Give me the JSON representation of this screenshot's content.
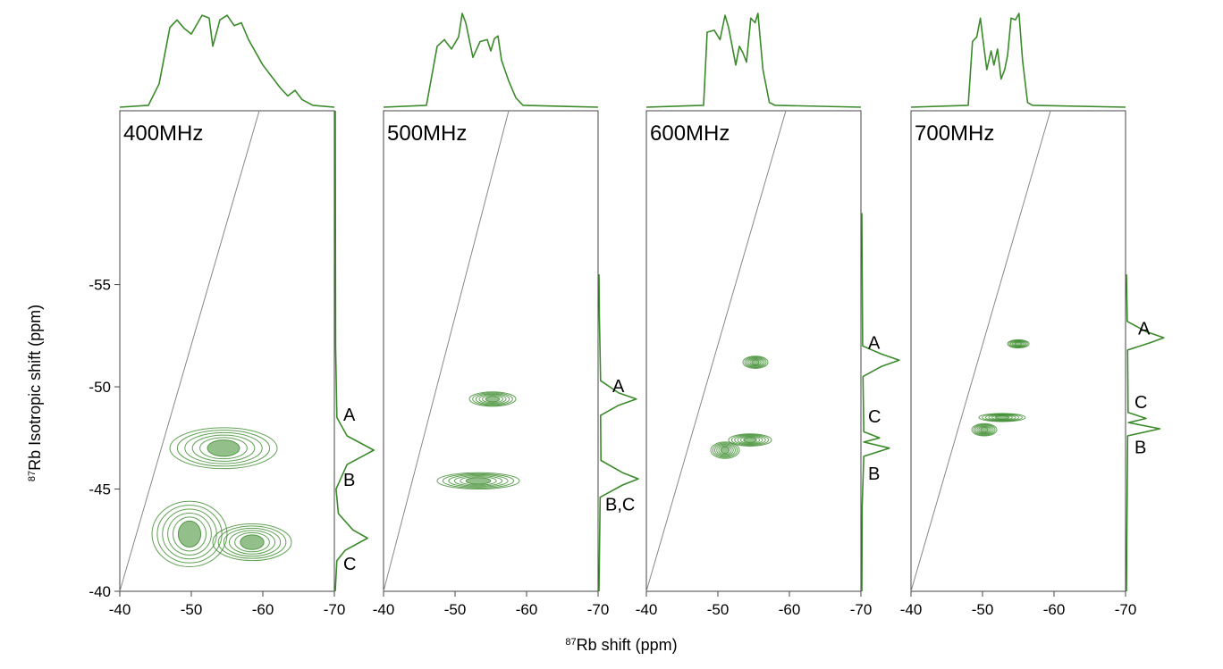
{
  "figure": {
    "xlabel_sup": "87",
    "xlabel_rest": "Rb shift (ppm)",
    "ylabel_sup": "87",
    "ylabel_rest": "Rb Isotropic shift (ppm)",
    "contour_color": "#3a8a2a",
    "diagonal_color": "#888888"
  },
  "chart_data": [
    {
      "type": "contour",
      "title": "400MHz",
      "xlim": [
        -40,
        -70
      ],
      "ylim": [
        -40,
        -63.5
      ],
      "xticks": [
        -40,
        -50,
        -60,
        -70
      ],
      "yticks": [
        -55,
        -50,
        -45,
        -40
      ],
      "diagonal": [
        [
          -40,
          -40
        ],
        [
          -59.5,
          -63.5
        ]
      ],
      "peaks": [
        {
          "x": [
            -47,
            -62
          ],
          "y": -47.0,
          "h": 1.0
        },
        {
          "x": [
            -44.5,
            -55
          ],
          "y": -42.8,
          "h": 1.6
        },
        {
          "x": [
            -53,
            -64
          ],
          "y": -42.4,
          "h": 0.9
        }
      ],
      "spectrum": [
        [
          -40,
          0.0
        ],
        [
          -44,
          0.02
        ],
        [
          -45.5,
          0.25
        ],
        [
          -47,
          0.85
        ],
        [
          -48,
          0.93
        ],
        [
          -49,
          0.84
        ],
        [
          -50,
          0.78
        ],
        [
          -51.5,
          0.98
        ],
        [
          -52.5,
          0.95
        ],
        [
          -53,
          0.65
        ],
        [
          -54,
          0.93
        ],
        [
          -55,
          0.98
        ],
        [
          -56,
          0.87
        ],
        [
          -57,
          0.9
        ],
        [
          -58,
          0.72
        ],
        [
          -60,
          0.45
        ],
        [
          -61.5,
          0.3
        ],
        [
          -62.5,
          0.2
        ],
        [
          -63.5,
          0.12
        ],
        [
          -64.5,
          0.18
        ],
        [
          -65.5,
          0.08
        ],
        [
          -67,
          0.02
        ],
        [
          -70,
          0.0
        ]
      ],
      "projection": [
        [
          -40,
          0.0
        ],
        [
          -41.5,
          0.04
        ],
        [
          -42.0,
          0.25
        ],
        [
          -42.6,
          0.82
        ],
        [
          -43.0,
          0.45
        ],
        [
          -43.8,
          0.08
        ],
        [
          -45.0,
          0.02
        ],
        [
          -46.2,
          0.3
        ],
        [
          -46.9,
          0.98
        ],
        [
          -47.6,
          0.3
        ],
        [
          -48.5,
          0.04
        ],
        [
          -52,
          0.01
        ],
        [
          -63.5,
          0.0
        ]
      ],
      "labels": [
        {
          "text": "A",
          "y": -48.7,
          "dx": 10
        },
        {
          "text": "B",
          "y": -45.5,
          "dx": 10
        },
        {
          "text": "C",
          "y": -41.4,
          "dx": 10
        }
      ]
    },
    {
      "type": "contour",
      "title": "500MHz",
      "xlim": [
        -40,
        -70
      ],
      "ylim": [
        -40,
        -63.5
      ],
      "xticks": [
        -40,
        -50,
        -60,
        -70
      ],
      "yticks": [],
      "diagonal": [
        [
          -40,
          -40
        ],
        [
          -57.5,
          -63.5
        ]
      ],
      "peaks": [
        {
          "x": [
            -52,
            -58.5
          ],
          "y": -49.4,
          "h": 0.35
        },
        {
          "x": [
            -47.5,
            -59
          ],
          "y": -45.4,
          "h": 0.4
        }
      ],
      "spectrum": [
        [
          -40,
          0.0
        ],
        [
          -46,
          0.02
        ],
        [
          -47.5,
          0.65
        ],
        [
          -48.5,
          0.72
        ],
        [
          -49.5,
          0.62
        ],
        [
          -50.5,
          0.75
        ],
        [
          -51,
          1.0
        ],
        [
          -51.5,
          0.9
        ],
        [
          -52.5,
          0.53
        ],
        [
          -53.5,
          0.7
        ],
        [
          -54.5,
          0.72
        ],
        [
          -55,
          0.6
        ],
        [
          -55.5,
          0.73
        ],
        [
          -56,
          0.76
        ],
        [
          -56.5,
          0.5
        ],
        [
          -57.5,
          0.28
        ],
        [
          -58.5,
          0.1
        ],
        [
          -59.5,
          0.02
        ],
        [
          -70,
          0.0
        ]
      ],
      "projection": [
        [
          -40,
          0.0
        ],
        [
          -44.6,
          0.03
        ],
        [
          -45.2,
          0.6
        ],
        [
          -45.5,
          1.0
        ],
        [
          -45.8,
          0.6
        ],
        [
          -46.4,
          0.05
        ],
        [
          -48.6,
          0.04
        ],
        [
          -49.1,
          0.5
        ],
        [
          -49.4,
          0.95
        ],
        [
          -49.7,
          0.5
        ],
        [
          -50.3,
          0.04
        ],
        [
          -53.5,
          0.01
        ],
        [
          -55.5,
          0.0
        ]
      ],
      "labels": [
        {
          "text": "A",
          "y": -50.1,
          "dx": 16
        },
        {
          "text": "B,C",
          "y": -44.3,
          "dx": 8
        }
      ]
    },
    {
      "type": "contour",
      "title": "600MHz",
      "xlim": [
        -40,
        -70
      ],
      "ylim": [
        -40,
        -63.5
      ],
      "xticks": [
        -40,
        -50,
        -60,
        -70
      ],
      "yticks": [],
      "diagonal": [
        [
          -40,
          -40
        ],
        [
          -59.5,
          -63.5
        ]
      ],
      "peaks": [
        {
          "x": [
            -53.5,
            -57.0
          ],
          "y": -51.2,
          "h": 0.3
        },
        {
          "x": [
            -51.5,
            -57.5
          ],
          "y": -47.4,
          "h": 0.3
        },
        {
          "x": [
            -49,
            -53
          ],
          "y": -46.9,
          "h": 0.4
        }
      ],
      "spectrum": [
        [
          -40,
          0.0
        ],
        [
          -48,
          0.02
        ],
        [
          -48.5,
          0.8
        ],
        [
          -49.5,
          0.82
        ],
        [
          -50.3,
          0.72
        ],
        [
          -51,
          0.98
        ],
        [
          -51.5,
          0.85
        ],
        [
          -52.5,
          0.45
        ],
        [
          -53,
          0.65
        ],
        [
          -53.5,
          0.58
        ],
        [
          -54,
          0.48
        ],
        [
          -54.6,
          0.95
        ],
        [
          -55.2,
          0.9
        ],
        [
          -55.6,
          1.0
        ],
        [
          -56.3,
          0.4
        ],
        [
          -57.2,
          0.05
        ],
        [
          -58,
          0.02
        ],
        [
          -70,
          0.0
        ]
      ],
      "projection": [
        [
          -40,
          0.0
        ],
        [
          -44.2,
          0.01
        ],
        [
          -46.6,
          0.05
        ],
        [
          -47.0,
          0.7
        ],
        [
          -47.3,
          0.05
        ],
        [
          -47.5,
          0.45
        ],
        [
          -47.8,
          0.05
        ],
        [
          -50.5,
          0.03
        ],
        [
          -51.0,
          0.5
        ],
        [
          -51.3,
          0.95
        ],
        [
          -51.6,
          0.5
        ],
        [
          -52.0,
          0.02
        ],
        [
          -58.5,
          0.0
        ]
      ],
      "labels": [
        {
          "text": "A",
          "y": -52.2,
          "dx": 8
        },
        {
          "text": "C",
          "y": -48.6,
          "dx": 8
        },
        {
          "text": "B",
          "y": -45.8,
          "dx": 8
        }
      ]
    },
    {
      "type": "contour",
      "title": "700MHz",
      "xlim": [
        -40,
        -70
      ],
      "ylim": [
        -40,
        -63.5
      ],
      "xticks": [
        -40,
        -50,
        -60,
        -70
      ],
      "yticks": [],
      "diagonal": [
        [
          -40,
          -40
        ],
        [
          -59.5,
          -63.5
        ]
      ],
      "peaks": [
        {
          "x": [
            -53.5,
            -56.5
          ],
          "y": -52.1,
          "h": 0.2
        },
        {
          "x": [
            -49.5,
            -56
          ],
          "y": -48.5,
          "h": 0.2
        },
        {
          "x": [
            -48.5,
            -52
          ],
          "y": -47.9,
          "h": 0.3
        }
      ],
      "spectrum": [
        [
          -40,
          0.0
        ],
        [
          -48,
          0.02
        ],
        [
          -48.6,
          0.7
        ],
        [
          -49.2,
          0.75
        ],
        [
          -49.7,
          0.95
        ],
        [
          -50.1,
          0.7
        ],
        [
          -50.6,
          0.4
        ],
        [
          -51.2,
          0.6
        ],
        [
          -51.6,
          0.45
        ],
        [
          -52.1,
          0.62
        ],
        [
          -52.6,
          0.3
        ],
        [
          -53.1,
          0.4
        ],
        [
          -53.5,
          0.55
        ],
        [
          -54,
          0.95
        ],
        [
          -54.6,
          0.93
        ],
        [
          -55.1,
          1.0
        ],
        [
          -55.6,
          0.5
        ],
        [
          -56.3,
          0.05
        ],
        [
          -57,
          0.02
        ],
        [
          -70,
          0.0
        ]
      ],
      "projection": [
        [
          -40,
          0.0
        ],
        [
          -42.5,
          0.01
        ],
        [
          -47.6,
          0.03
        ],
        [
          -47.95,
          0.85
        ],
        [
          -48.25,
          0.05
        ],
        [
          -48.45,
          0.5
        ],
        [
          -48.75,
          0.04
        ],
        [
          -51.8,
          0.03
        ],
        [
          -52.15,
          0.6
        ],
        [
          -52.4,
          0.95
        ],
        [
          -52.7,
          0.5
        ],
        [
          -53.2,
          0.02
        ],
        [
          -55.5,
          0.0
        ]
      ],
      "labels": [
        {
          "text": "A",
          "y": -52.9,
          "dx": 14
        },
        {
          "text": "C",
          "y": -49.3,
          "dx": 10
        },
        {
          "text": "B",
          "y": -47.1,
          "dx": 10
        }
      ]
    }
  ]
}
